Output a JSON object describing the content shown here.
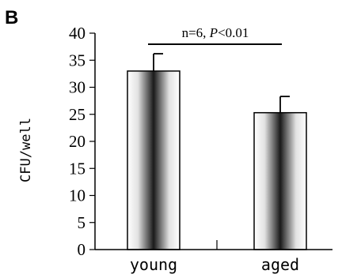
{
  "panel_label": "B",
  "chart_data": {
    "type": "bar",
    "categories": [
      "young",
      "aged"
    ],
    "values": [
      33,
      25.3
    ],
    "errors": [
      3.2,
      3.0
    ],
    "ylabel": "CFU/well",
    "xlabel": "",
    "ylim": [
      0,
      40
    ],
    "yticks": [
      "0",
      "5",
      "10",
      "15",
      "20",
      "25",
      "30",
      "35",
      "40"
    ],
    "annotation": {
      "prefix": "n=6, ",
      "p_symbol": "P",
      "suffix": "<0.01"
    },
    "colors": {
      "bar_edge": "#000000",
      "bar_center": "#1a1a1a",
      "bar_outer": "#ffffff"
    }
  }
}
